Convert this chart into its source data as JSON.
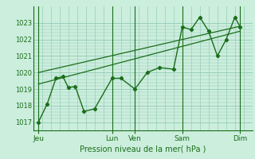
{
  "bg_color": "#cceedd",
  "grid_color": "#99ccbb",
  "line_color": "#1a6e1a",
  "xlabel": "Pression niveau de la mer( hPa )",
  "ylim": [
    1016.5,
    1024.0
  ],
  "xlim": [
    0,
    12.5
  ],
  "yticks": [
    1017,
    1018,
    1019,
    1020,
    1021,
    1022,
    1023
  ],
  "day_labels": [
    "Jeu",
    "Lun",
    "Ven",
    "Sam",
    "Dim"
  ],
  "day_positions": [
    0.3,
    4.5,
    5.8,
    8.5,
    11.8
  ],
  "vline_positions": [
    0.3,
    4.5,
    5.8,
    8.5,
    11.8
  ],
  "series1_x": [
    0.3,
    0.8,
    1.3,
    1.7,
    2.0,
    2.4,
    2.9,
    3.5,
    4.5,
    5.0,
    5.8,
    6.5,
    7.2,
    8.0,
    8.5,
    9.0,
    9.5,
    10.0,
    10.5,
    11.0,
    11.5,
    11.8
  ],
  "series1_y": [
    1017.0,
    1018.1,
    1019.65,
    1019.75,
    1019.1,
    1019.15,
    1017.65,
    1017.8,
    1019.65,
    1019.65,
    1019.0,
    1020.0,
    1020.3,
    1020.2,
    1022.75,
    1022.6,
    1023.35,
    1022.5,
    1021.0,
    1022.0,
    1023.35,
    1022.75
  ],
  "trend1_x": [
    0.3,
    11.8
  ],
  "trend1_y": [
    1019.3,
    1022.5
  ],
  "trend2_x": [
    0.3,
    11.8
  ],
  "trend2_y": [
    1020.0,
    1022.8
  ]
}
